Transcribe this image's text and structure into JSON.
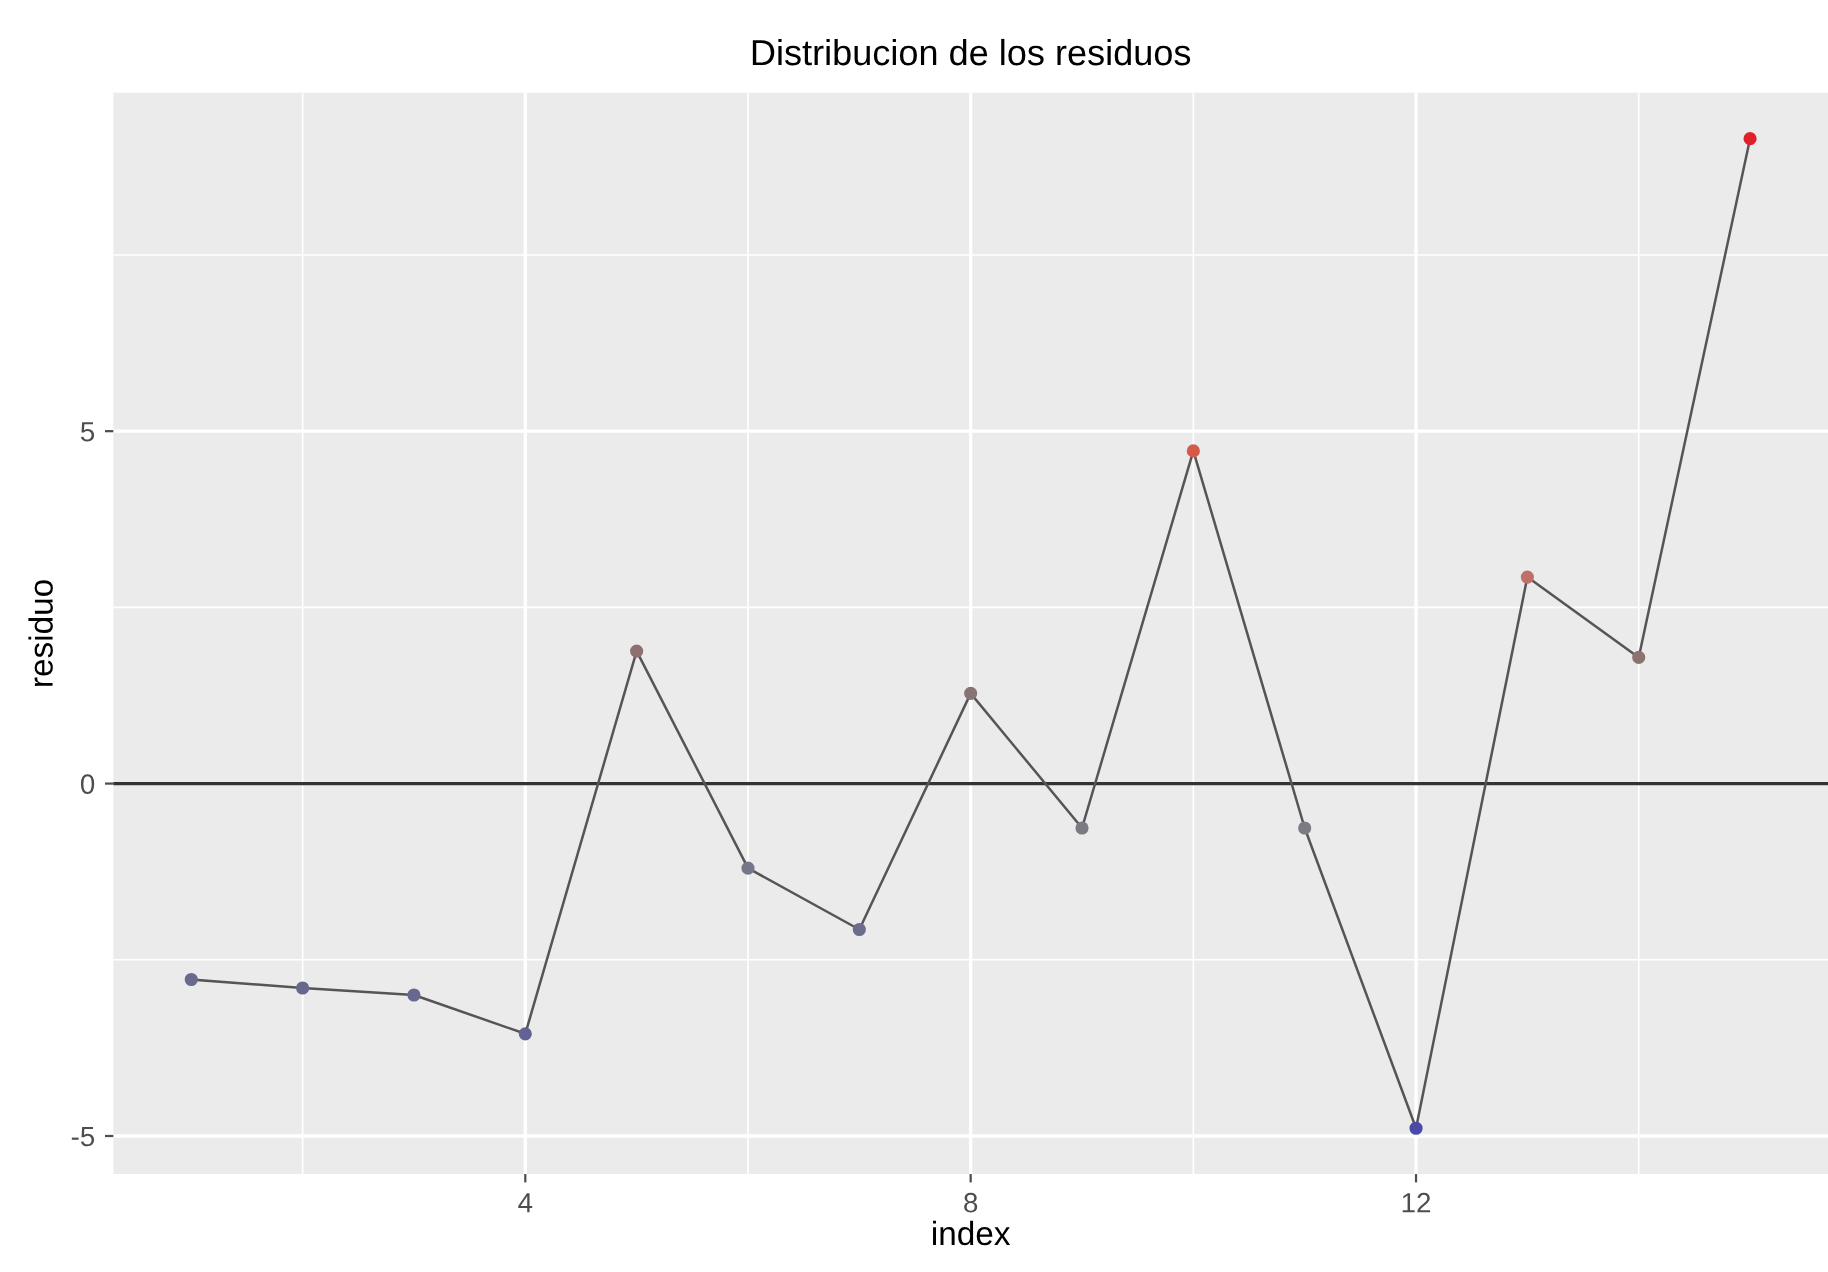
{
  "chart_data": {
    "type": "line",
    "title": "Distribucion de los residuos",
    "xlabel": "index",
    "ylabel": "residuo",
    "x": [
      1,
      2,
      3,
      4,
      5,
      6,
      7,
      8,
      9,
      10,
      11,
      12,
      13,
      14,
      15
    ],
    "series": [
      {
        "color": "#555555",
        "marker": "circle",
        "line_style": "solid",
        "values": [
          -2.78,
          -2.9,
          -3.0,
          -3.55,
          1.88,
          -1.2,
          -2.07,
          1.28,
          -0.63,
          4.72,
          -0.63,
          -4.89,
          2.93,
          1.79,
          9.15
        ],
        "colors": [
          "#6a6a8e",
          "#68688f",
          "#676790",
          "#626294",
          "#8e7070",
          "#76768a",
          "#6c6c8d",
          "#877474",
          "#7b7b84",
          "#d45a4a",
          "#7b7b84",
          "#4a4aa8",
          "#c07068",
          "#8e7272",
          "#e0202a"
        ]
      }
    ],
    "xlim": [
      0.3,
      15.7
    ],
    "ylim": [
      -5.54,
      9.8
    ],
    "xticks": [
      4,
      8,
      12
    ],
    "yticks": [
      -5,
      0,
      5
    ],
    "ref_lines": [
      {
        "axis": "y",
        "value": 0,
        "color": "#333333"
      }
    ],
    "grid": true
  }
}
